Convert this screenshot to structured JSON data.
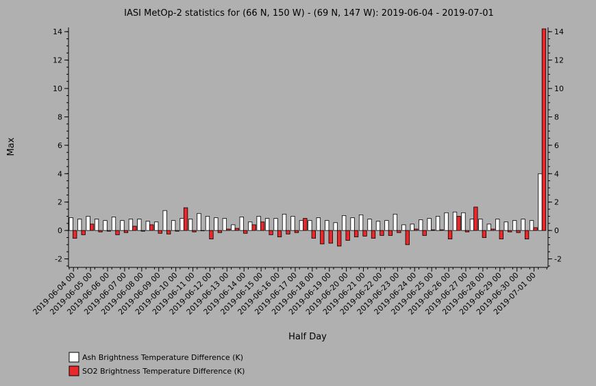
{
  "colors": {
    "background": "#b0b0b0",
    "ash": "#ffffff",
    "so2": "#e8282a",
    "stroke": "#000000"
  },
  "chart_data": {
    "type": "bar",
    "title": "IASI MetOp-2 statistics for (66 N, 150 W) - (69 N, 147 W): 2019-06-04 - 2019-07-01",
    "xlabel": "Half Day",
    "ylabel": "Max",
    "ylim": [
      -2.6,
      14.3
    ],
    "yticks": [
      -2,
      0,
      2,
      4,
      6,
      8,
      10,
      12,
      14
    ],
    "grid": false,
    "legend_position": "bottom-left",
    "x_tick_labels": [
      "2019-06-04 00",
      "2019-06-05 00",
      "2019-06-06 00",
      "2019-06-07 00",
      "2019-06-08 00",
      "2019-06-09 00",
      "2019-06-10 00",
      "2019-06-11 00",
      "2019-06-12 00",
      "2019-06-13 00",
      "2019-06-14 00",
      "2019-06-15 00",
      "2019-06-16 00",
      "2019-06-17 00",
      "2019-06-18 00",
      "2019-06-19 00",
      "2019-06-20 00",
      "2019-06-21 00",
      "2019-06-22 00",
      "2019-06-23 00",
      "2019-06-24 00",
      "2019-06-25 00",
      "2019-06-26 00",
      "2019-06-27 00",
      "2019-06-28 00",
      "2019-06-29 00",
      "2019-06-30 00",
      "2019-07-01 00"
    ],
    "series": [
      {
        "name": "Ash Brightness Temperature Difference (K)",
        "values": [
          0.9,
          0.8,
          1.0,
          0.8,
          0.7,
          0.95,
          0.7,
          0.8,
          0.8,
          0.65,
          0.6,
          1.4,
          0.7,
          0.85,
          0.8,
          1.2,
          1.0,
          0.9,
          0.85,
          0.4,
          0.95,
          0.6,
          1.0,
          0.85,
          0.85,
          1.15,
          1.0,
          0.7,
          0.7,
          0.9,
          0.7,
          0.55,
          1.05,
          0.9,
          1.1,
          0.8,
          0.65,
          0.7,
          1.15,
          0.4,
          0.45,
          0.75,
          0.85,
          1.0,
          1.25,
          1.3,
          1.25,
          0.8,
          0.8,
          0.45,
          0.8,
          0.6,
          0.7,
          0.8,
          0.7,
          4.0
        ]
      },
      {
        "name": "SO2 Brightness Temperature Difference (K)",
        "values": [
          -0.55,
          -0.3,
          0.45,
          -0.1,
          -0.05,
          -0.3,
          -0.15,
          0.3,
          -0.05,
          0.4,
          -0.2,
          -0.25,
          -0.05,
          1.6,
          -0.1,
          0.0,
          -0.6,
          -0.15,
          0.1,
          0.15,
          -0.2,
          0.4,
          0.6,
          -0.3,
          -0.45,
          -0.25,
          -0.15,
          0.85,
          -0.55,
          -0.95,
          -0.9,
          -1.1,
          -0.7,
          -0.45,
          -0.4,
          -0.55,
          -0.35,
          -0.35,
          -0.15,
          -1.0,
          0.1,
          -0.35,
          0.05,
          0.05,
          -0.6,
          1.0,
          -0.1,
          1.65,
          -0.5,
          0.1,
          -0.6,
          -0.1,
          -0.15,
          -0.6,
          0.2,
          14.2
        ]
      }
    ]
  }
}
